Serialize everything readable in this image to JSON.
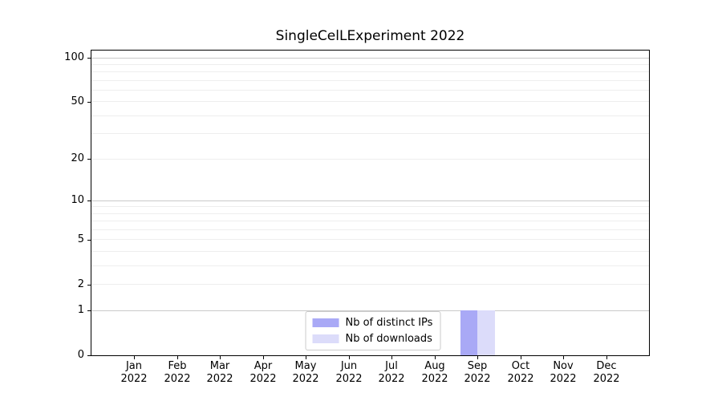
{
  "chart_data": {
    "type": "bar",
    "title": "SingleCelLExperiment 2022",
    "categories": [
      {
        "month": "Jan",
        "year": "2022"
      },
      {
        "month": "Feb",
        "year": "2022"
      },
      {
        "month": "Mar",
        "year": "2022"
      },
      {
        "month": "Apr",
        "year": "2022"
      },
      {
        "month": "May",
        "year": "2022"
      },
      {
        "month": "Jun",
        "year": "2022"
      },
      {
        "month": "Jul",
        "year": "2022"
      },
      {
        "month": "Aug",
        "year": "2022"
      },
      {
        "month": "Sep",
        "year": "2022"
      },
      {
        "month": "Oct",
        "year": "2022"
      },
      {
        "month": "Nov",
        "year": "2022"
      },
      {
        "month": "Dec",
        "year": "2022"
      }
    ],
    "series": [
      {
        "name": "Nb of distinct IPs",
        "color": "#a9a9f6",
        "values": [
          0,
          0,
          0,
          0,
          0,
          0,
          0,
          0,
          1,
          0,
          0,
          0
        ]
      },
      {
        "name": "Nb of downloads",
        "color": "#dcdcfa",
        "values": [
          0,
          0,
          0,
          0,
          0,
          0,
          0,
          0,
          1,
          0,
          0,
          0
        ]
      }
    ],
    "xlabel": "",
    "ylabel": "",
    "yscale": "log1p",
    "ylim": [
      0,
      112
    ],
    "yticks": [
      0,
      1,
      2,
      5,
      10,
      20,
      50,
      100
    ],
    "ytick_major_grid": [
      1,
      10,
      100
    ],
    "yminor_grid": [
      2,
      3,
      4,
      5,
      6,
      7,
      8,
      9,
      20,
      30,
      40,
      50,
      60,
      70,
      80,
      90
    ],
    "grid": true,
    "legend_position": "lower center",
    "colors": {
      "grid_major": "#c9c9c9",
      "grid_minor": "#eeeeee",
      "spine": "#000000",
      "text": "#000000",
      "background": "#ffffff"
    }
  }
}
